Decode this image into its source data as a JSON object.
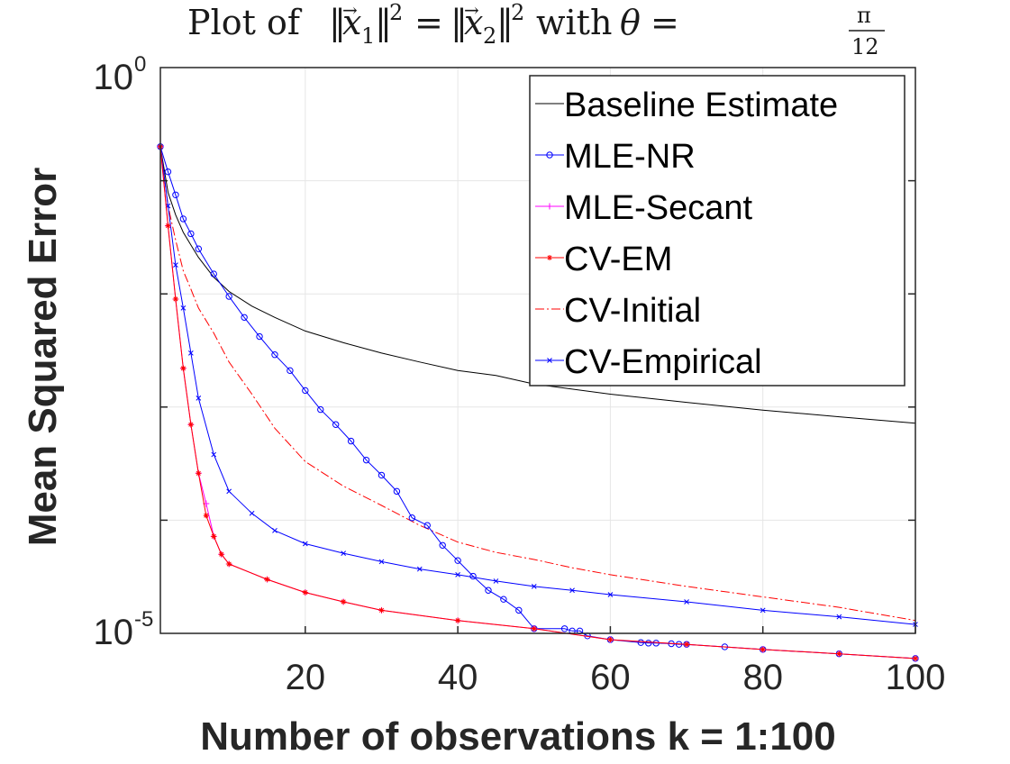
{
  "chart_data": {
    "type": "line",
    "title": "Plot of ‖x⃗₁‖² = ‖x⃗₂‖² with θ = π/12",
    "title_parts": {
      "plot_of": "Plot of",
      "norm_open": "‖",
      "x": "x",
      "vec_arrow": "→",
      "sub1": "1",
      "sub2": "2",
      "norm_close": "‖",
      "sq": "2",
      "eq": "=",
      "with": "with",
      "theta": "θ",
      "pi": "π",
      "den": "12"
    },
    "xlabel": "Number of observations k = 1:100",
    "ylabel": "Mean Squared Error",
    "xlim": [
      1,
      100
    ],
    "ylim": [
      1e-05,
      1
    ],
    "yscale": "log",
    "grid": true,
    "legend_location": "top-right",
    "x_ticks": [
      20,
      40,
      60,
      80,
      100
    ],
    "x_tick_labels": [
      "20",
      "40",
      "60",
      "80",
      "100"
    ],
    "y_ticks": [
      {
        "base": "10",
        "exp": "0",
        "value": 1
      },
      {
        "base": "10",
        "exp": "-5",
        "value": 1e-05
      }
    ],
    "series_style": [
      {
        "name": "Baseline Estimate",
        "color": "#000000",
        "dash": "",
        "marker": "none"
      },
      {
        "name": "MLE-NR",
        "color": "#0000ff",
        "dash": "",
        "marker": "circle"
      },
      {
        "name": "MLE-Secant",
        "color": "#ff00ff",
        "dash": "",
        "marker": "plus"
      },
      {
        "name": "CV-EM",
        "color": "#ff0000",
        "dash": "",
        "marker": "star"
      },
      {
        "name": "CV-Initial",
        "color": "#ff0000",
        "dash": "10,3,2,3",
        "marker": "none"
      },
      {
        "name": "CV-Empirical",
        "color": "#0000ff",
        "dash": "",
        "marker": "x"
      }
    ],
    "series": [
      {
        "name": "Baseline Estimate",
        "x": [
          1,
          2,
          3,
          4,
          5,
          6,
          8,
          10,
          13,
          16,
          20,
          25,
          30,
          35,
          40,
          45,
          50,
          60,
          70,
          80,
          90,
          100
        ],
        "values": [
          0.2,
          0.079,
          0.05,
          0.035,
          0.027,
          0.021,
          0.014,
          0.0105,
          0.0078,
          0.0062,
          0.0047,
          0.0037,
          0.003,
          0.0025,
          0.0021,
          0.0019,
          0.0016,
          0.0013,
          0.0011,
          0.00094,
          0.00082,
          0.00072
        ]
      },
      {
        "name": "MLE-NR",
        "x": [
          1,
          2,
          3,
          4,
          5,
          6,
          8,
          10,
          12,
          14,
          16,
          18,
          20,
          22,
          24,
          26,
          28,
          30,
          32,
          34,
          36,
          38,
          40,
          42,
          44,
          46,
          48,
          50,
          54,
          55,
          56,
          57,
          60,
          64,
          65,
          66,
          68,
          69,
          70,
          75,
          80,
          90,
          100
        ],
        "values": [
          0.2,
          0.12,
          0.075,
          0.046,
          0.034,
          0.025,
          0.015,
          0.0095,
          0.0062,
          0.0042,
          0.0029,
          0.0021,
          0.0014,
          0.00095,
          0.0007,
          0.0005,
          0.00034,
          0.00025,
          0.00018,
          0.000105,
          9e-05,
          6e-05,
          4.4e-05,
          3.2e-05,
          2.4e-05,
          2e-05,
          1.6e-05,
          1.1e-05,
          1.1e-05,
          1.05e-05,
          1.05e-05,
          9.5e-06,
          8.8e-06,
          8.3e-06,
          8.2e-06,
          8.2e-06,
          8.1e-06,
          8e-06,
          8e-06,
          7.6e-06,
          7.2e-06,
          6.6e-06,
          6e-06
        ]
      },
      {
        "name": "MLE-Secant",
        "x": [
          1,
          2,
          3,
          4,
          5,
          6,
          7,
          8,
          9,
          10,
          15,
          20,
          25,
          30,
          40,
          50,
          60,
          70,
          80,
          90,
          100
        ],
        "values": [
          0.2,
          0.04,
          0.009,
          0.0022,
          0.0007,
          0.00026,
          0.00014,
          7.2e-05,
          5e-05,
          4.1e-05,
          3e-05,
          2.3e-05,
          1.9e-05,
          1.6e-05,
          1.3e-05,
          1.1e-05,
          8.8e-06,
          8e-06,
          7.2e-06,
          6.6e-06,
          6e-06
        ]
      },
      {
        "name": "CV-EM",
        "x": [
          1,
          2,
          3,
          4,
          5,
          6,
          7,
          8,
          9,
          10,
          15,
          20,
          25,
          30,
          40,
          50,
          60,
          70,
          80,
          90,
          100
        ],
        "values": [
          0.2,
          0.04,
          0.009,
          0.0022,
          0.0007,
          0.00026,
          0.00011,
          7.2e-05,
          5e-05,
          4.1e-05,
          3e-05,
          2.3e-05,
          1.9e-05,
          1.6e-05,
          1.3e-05,
          1.1e-05,
          8.8e-06,
          8e-06,
          7.2e-06,
          6.6e-06,
          6e-06
        ]
      },
      {
        "name": "CV-Initial",
        "x": [
          1,
          2,
          3,
          4,
          5,
          6,
          8,
          10,
          13,
          16,
          20,
          25,
          30,
          35,
          40,
          45,
          50,
          55,
          60,
          70,
          80,
          90,
          100
        ],
        "values": [
          0.2,
          0.06,
          0.03,
          0.016,
          0.011,
          0.0075,
          0.0045,
          0.0025,
          0.0013,
          0.00065,
          0.00033,
          0.0002,
          0.000135,
          9e-05,
          6.4e-05,
          5.2e-05,
          4.5e-05,
          3.8e-05,
          3.3e-05,
          2.6e-05,
          2.1e-05,
          1.7e-05,
          1.3e-05
        ]
      },
      {
        "name": "CV-Empirical",
        "x": [
          1,
          2,
          3,
          4,
          5,
          6,
          8,
          10,
          13,
          16,
          20,
          25,
          30,
          35,
          40,
          45,
          50,
          55,
          60,
          70,
          80,
          90,
          100
        ],
        "values": [
          0.2,
          0.06,
          0.018,
          0.0075,
          0.003,
          0.0012,
          0.00038,
          0.00018,
          0.000115,
          8.1e-05,
          6.2e-05,
          5.1e-05,
          4.3e-05,
          3.7e-05,
          3.3e-05,
          2.9e-05,
          2.6e-05,
          2.4e-05,
          2.2e-05,
          1.9e-05,
          1.6e-05,
          1.4e-05,
          1.2e-05
        ]
      }
    ]
  }
}
